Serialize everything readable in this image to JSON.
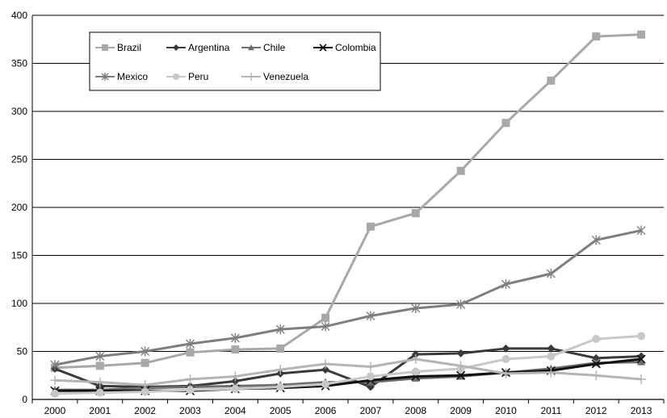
{
  "chart_data": {
    "type": "line",
    "title": "",
    "xlabel": "",
    "ylabel": "",
    "categories": [
      "2000",
      "2001",
      "2002",
      "2003",
      "2004",
      "2005",
      "2006",
      "2007",
      "2008",
      "2009",
      "2010",
      "2011",
      "2012",
      "2013"
    ],
    "ylim": [
      0,
      400
    ],
    "yticks": [
      0,
      50,
      100,
      150,
      200,
      250,
      300,
      350,
      400
    ],
    "grid": "horizontal",
    "legend_position": "top-left",
    "series": [
      {
        "name": "Brazil",
        "marker": "square",
        "color": "#a8a8a8",
        "values": [
          33,
          35,
          38,
          49,
          52,
          53,
          85,
          180,
          194,
          238,
          288,
          332,
          378,
          380
        ]
      },
      {
        "name": "Argentina",
        "marker": "diamond",
        "color": "#3a3a3a",
        "values": [
          32,
          14,
          13,
          14,
          19,
          27,
          31,
          13,
          47,
          48,
          53,
          53,
          43,
          45
        ]
      },
      {
        "name": "Chile",
        "marker": "triangle",
        "color": "#6e6e6e",
        "values": [
          10,
          10,
          12,
          13,
          14,
          15,
          18,
          18,
          22,
          24,
          28,
          32,
          38,
          39
        ]
      },
      {
        "name": "Colombia",
        "marker": "x",
        "color": "#111111",
        "values": [
          9,
          9,
          9,
          9,
          11,
          12,
          14,
          20,
          24,
          25,
          28,
          30,
          37,
          42
        ]
      },
      {
        "name": "Mexico",
        "marker": "star",
        "color": "#7e7e7e",
        "values": [
          36,
          45,
          50,
          58,
          64,
          73,
          76,
          87,
          95,
          99,
          120,
          131,
          166,
          176
        ]
      },
      {
        "name": "Peru",
        "marker": "circle",
        "color": "#c8c8c8",
        "values": [
          6,
          7,
          8,
          10,
          11,
          13,
          16,
          24,
          29,
          32,
          42,
          45,
          63,
          66
        ]
      },
      {
        "name": "Venezuela",
        "marker": "plus",
        "color": "#b4b4b4",
        "values": [
          20,
          18,
          15,
          21,
          24,
          31,
          37,
          34,
          42,
          35,
          27,
          28,
          25,
          21
        ]
      }
    ]
  }
}
